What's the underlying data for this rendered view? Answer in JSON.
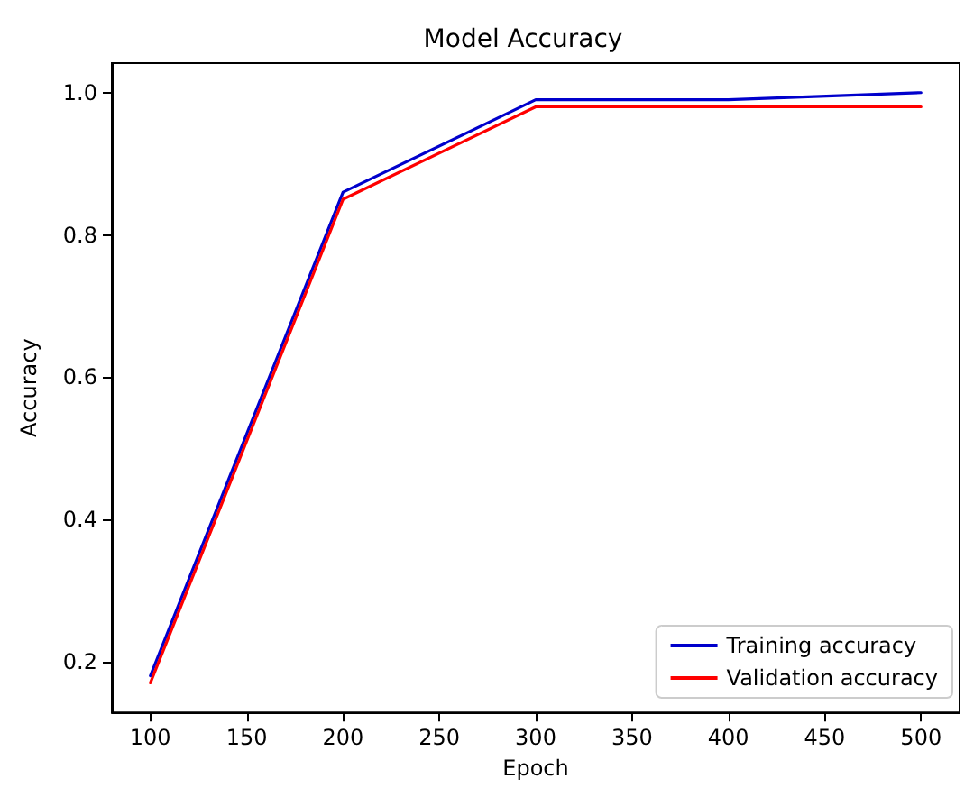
{
  "chart_data": {
    "type": "line",
    "title": "Model Accuracy",
    "xlabel": "Epoch",
    "ylabel": "Accuracy",
    "x": [
      100,
      200,
      300,
      400,
      500
    ],
    "series": [
      {
        "name": "Training accuracy",
        "color": "#0000cc",
        "values": [
          0.18,
          0.86,
          0.99,
          0.99,
          1.0
        ]
      },
      {
        "name": "Validation accuracy",
        "color": "#ff0000",
        "values": [
          0.17,
          0.85,
          0.98,
          0.98,
          0.98
        ]
      }
    ],
    "xlim": [
      80,
      520
    ],
    "xticks": [
      100,
      150,
      200,
      250,
      300,
      350,
      400,
      450,
      500
    ],
    "ylim": [
      0.1285,
      1.0415
    ],
    "yticks": [
      0.2,
      0.4,
      0.6,
      0.8,
      {
        "value": 1,
        "label": "1.0"
      }
    ],
    "grid": false,
    "legend": "bottom right",
    "marker": "none",
    "line_style": "solid"
  }
}
